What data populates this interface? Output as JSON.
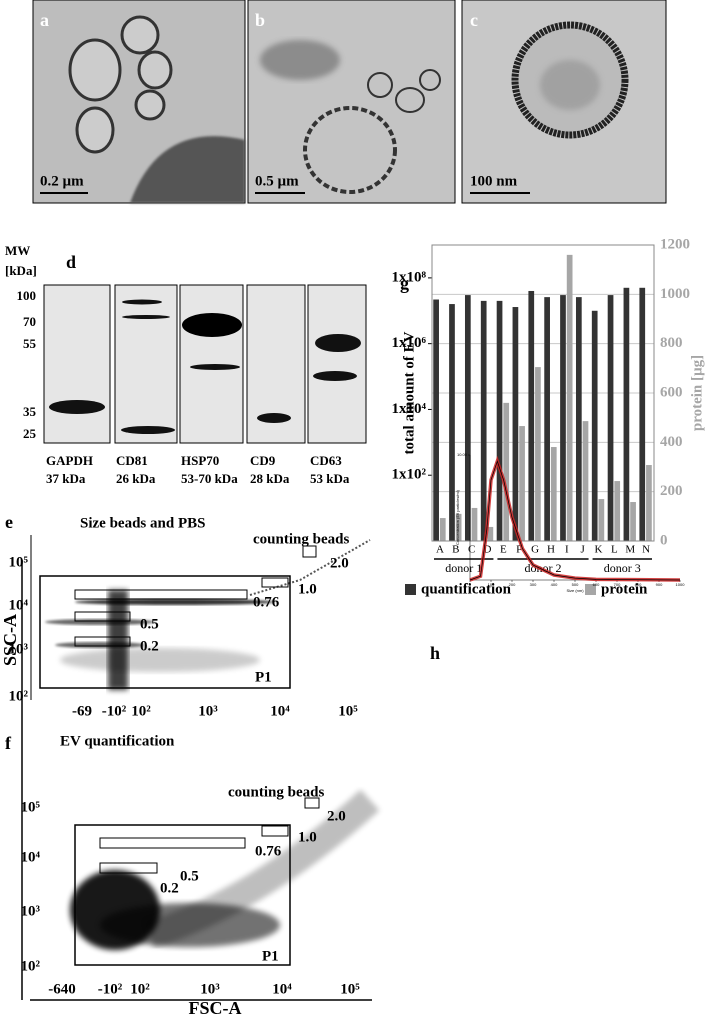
{
  "panels": {
    "a": {
      "label": "a",
      "scale": "0.2 µm"
    },
    "b": {
      "label": "b",
      "scale": "0.5 µm"
    },
    "c": {
      "label": "c",
      "scale": "100 nm"
    },
    "d": {
      "label": "d",
      "mw_title": "MW",
      "mw_unit": "[kDa]",
      "mw_ticks": [
        "100",
        "70",
        "55",
        "35",
        "25"
      ],
      "lanes": [
        {
          "name": "GAPDH",
          "size": "37 kDa"
        },
        {
          "name": "CD81",
          "size": "26 kDa"
        },
        {
          "name": "HSP70",
          "size": "53-70 kDa"
        },
        {
          "name": "CD9",
          "size": "28 kDa"
        },
        {
          "name": "CD63",
          "size": "53 kDa"
        }
      ]
    },
    "e": {
      "label": "e",
      "title": "Size beads and PBS",
      "gates": [
        "counting beads",
        "2.0",
        "1.0",
        "0.76",
        "0.5",
        "0.2",
        "P1"
      ],
      "xticks": [
        "-69",
        "-10²",
        "10²",
        "10³",
        "10⁴",
        "10⁵"
      ],
      "yticks": [
        "10⁵",
        "10⁴",
        "10³",
        "10²"
      ]
    },
    "f": {
      "label": "f",
      "title": "EV quantification",
      "gates": [
        "counting beads",
        "2.0",
        "1.0",
        "0.76",
        "0.5",
        "0.2",
        "P1"
      ],
      "xticks": [
        "-640",
        "-10²",
        "10²",
        "10³",
        "10⁴",
        "10⁵"
      ],
      "yticks": [
        "10⁵",
        "10⁴",
        "10³",
        "10²"
      ]
    },
    "flow_axes": {
      "y": "SSC-A",
      "x": "FSC-A"
    },
    "g": {
      "label": "g",
      "groups": [
        "donor 1",
        "donor 2",
        "donor 3"
      ]
    },
    "h": {
      "label": "h"
    }
  },
  "chart_data": [
    {
      "type": "bar",
      "ylabel": "total amount of EV",
      "y2label": "protein [µg]",
      "categories": [
        "A",
        "B",
        "C",
        "D",
        "E",
        "F",
        "G",
        "H",
        "I",
        "J",
        "K",
        "L",
        "M",
        "N"
      ],
      "series": [
        {
          "name": "quantification",
          "color": "#333333",
          "values": [
            22000000,
            16000000,
            30000000,
            20000000,
            20000000,
            13000000,
            40000000,
            26000000,
            30000000,
            26000000,
            10000000,
            30000000,
            50000000,
            50000000
          ]
        },
        {
          "name": "protein",
          "color": "#a6a6a6",
          "axis": "y2",
          "values": [
            93,
            110,
            134,
            57,
            560,
            466,
            705,
            381,
            1160,
            486,
            170,
            243,
            158,
            308
          ]
        }
      ],
      "log_y": true,
      "ylim": [
        1,
        1000000000
      ],
      "yticks": [
        {
          "value": 100,
          "label": "1x10²"
        },
        {
          "value": 10000,
          "label": "1x10⁴"
        },
        {
          "value": 1000000,
          "label": "1x10⁶"
        },
        {
          "value": 100000000,
          "label": "1x10⁸"
        }
      ],
      "y2lim": [
        0,
        1200
      ],
      "y2ticks": [
        0,
        200,
        400,
        600,
        800,
        1000,
        1200
      ],
      "grid": true
    },
    {
      "type": "line",
      "xlabel": "Size (nm)",
      "ylabel": "Concentration (E6 particles/ml)",
      "x": [
        0,
        50,
        80,
        100,
        130,
        160,
        200,
        250,
        300,
        400,
        500,
        600,
        1000
      ],
      "values": [
        0,
        0.3,
        4,
        8,
        9.5,
        8,
        5,
        2.5,
        1.2,
        0.4,
        0.15,
        0.05,
        0
      ],
      "color": "#cc2222",
      "xlim": [
        0,
        1000
      ],
      "ylim": [
        0,
        10
      ],
      "xticks": [
        0,
        100,
        200,
        300,
        400,
        500,
        600,
        700,
        800,
        900,
        1000
      ],
      "yticks": [
        {
          "value": 10,
          "label": "10.00"
        }
      ]
    }
  ]
}
